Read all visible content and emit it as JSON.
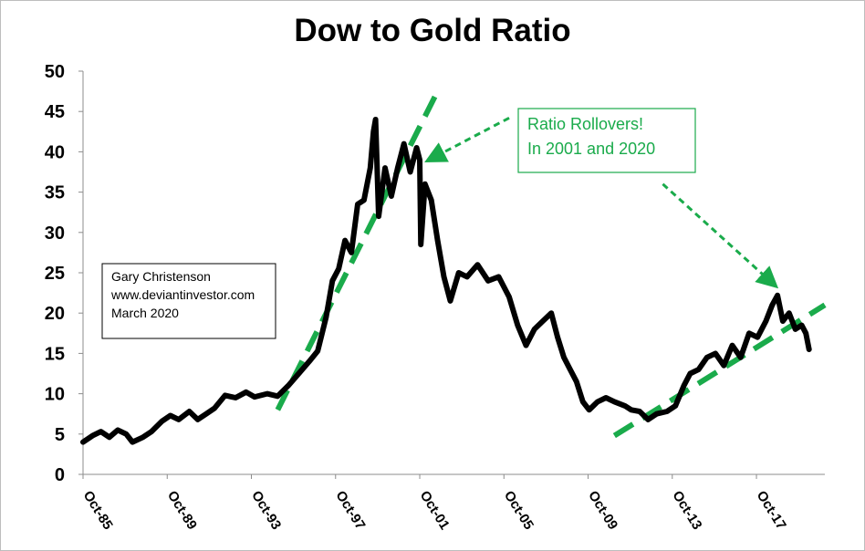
{
  "chart_data": {
    "type": "line",
    "title": "Dow to Gold Ratio",
    "xlabel": "",
    "ylabel": "",
    "ylim": [
      0,
      50
    ],
    "yticks": [
      0,
      5,
      10,
      15,
      20,
      25,
      30,
      35,
      40,
      45,
      50
    ],
    "xtick_labels": [
      "Oct-85",
      "Oct-89",
      "Oct-93",
      "Oct-97",
      "Oct-01",
      "Oct-05",
      "Oct-09",
      "Oct-13",
      "Oct-17"
    ],
    "xtick_years": [
      1985.75,
      1989.75,
      1993.75,
      1997.75,
      2001.75,
      2005.75,
      2009.75,
      2013.75,
      2017.75
    ],
    "xlim": [
      1985.75,
      2021.0
    ],
    "grid": false,
    "series": [
      {
        "color": "#000000",
        "points": [
          [
            1985.75,
            4.0
          ],
          [
            1986.2,
            4.8
          ],
          [
            1986.6,
            5.3
          ],
          [
            1987.0,
            4.6
          ],
          [
            1987.4,
            5.5
          ],
          [
            1987.8,
            5.0
          ],
          [
            1988.1,
            4.0
          ],
          [
            1988.6,
            4.6
          ],
          [
            1989.0,
            5.3
          ],
          [
            1989.5,
            6.6
          ],
          [
            1989.9,
            7.3
          ],
          [
            1990.3,
            6.8
          ],
          [
            1990.8,
            7.8
          ],
          [
            1991.2,
            6.8
          ],
          [
            1991.6,
            7.5
          ],
          [
            1992.0,
            8.2
          ],
          [
            1992.5,
            9.8
          ],
          [
            1993.0,
            9.5
          ],
          [
            1993.5,
            10.2
          ],
          [
            1993.9,
            9.6
          ],
          [
            1994.5,
            10.0
          ],
          [
            1995.0,
            9.7
          ],
          [
            1995.5,
            11.0
          ],
          [
            1996.0,
            12.5
          ],
          [
            1996.5,
            14.0
          ],
          [
            1996.9,
            15.3
          ],
          [
            1997.3,
            19.5
          ],
          [
            1997.6,
            24.0
          ],
          [
            1997.9,
            25.5
          ],
          [
            1998.2,
            29.0
          ],
          [
            1998.5,
            27.5
          ],
          [
            1998.8,
            33.5
          ],
          [
            1999.1,
            34.0
          ],
          [
            1999.4,
            38.0
          ],
          [
            1999.55,
            42.5
          ],
          [
            1999.65,
            44.0
          ],
          [
            1999.8,
            32.0
          ],
          [
            2000.1,
            38.0
          ],
          [
            2000.4,
            34.5
          ],
          [
            2000.7,
            38.0
          ],
          [
            2001.0,
            41.0
          ],
          [
            2001.3,
            37.5
          ],
          [
            2001.6,
            40.5
          ],
          [
            2001.75,
            39.0
          ],
          [
            2001.8,
            28.5
          ],
          [
            2002.0,
            36.0
          ],
          [
            2002.3,
            34.0
          ],
          [
            2002.6,
            29.0
          ],
          [
            2002.9,
            24.5
          ],
          [
            2003.2,
            21.5
          ],
          [
            2003.6,
            25.0
          ],
          [
            2004.0,
            24.5
          ],
          [
            2004.5,
            26.0
          ],
          [
            2005.0,
            24.0
          ],
          [
            2005.5,
            24.5
          ],
          [
            2006.0,
            22.0
          ],
          [
            2006.4,
            18.5
          ],
          [
            2006.8,
            16.0
          ],
          [
            2007.2,
            18.0
          ],
          [
            2007.6,
            19.0
          ],
          [
            2008.0,
            20.0
          ],
          [
            2008.3,
            17.0
          ],
          [
            2008.6,
            14.5
          ],
          [
            2008.9,
            13.0
          ],
          [
            2009.2,
            11.5
          ],
          [
            2009.5,
            9.0
          ],
          [
            2009.8,
            8.0
          ],
          [
            2010.2,
            9.0
          ],
          [
            2010.6,
            9.5
          ],
          [
            2011.0,
            9.0
          ],
          [
            2011.5,
            8.5
          ],
          [
            2011.8,
            8.0
          ],
          [
            2012.2,
            7.8
          ],
          [
            2012.6,
            6.8
          ],
          [
            2013.0,
            7.5
          ],
          [
            2013.5,
            7.8
          ],
          [
            2013.9,
            8.5
          ],
          [
            2014.3,
            11.0
          ],
          [
            2014.6,
            12.5
          ],
          [
            2015.0,
            13.0
          ],
          [
            2015.4,
            14.5
          ],
          [
            2015.8,
            15.0
          ],
          [
            2016.2,
            13.5
          ],
          [
            2016.6,
            16.0
          ],
          [
            2017.0,
            14.5
          ],
          [
            2017.4,
            17.5
          ],
          [
            2017.8,
            17.0
          ],
          [
            2018.2,
            19.0
          ],
          [
            2018.5,
            21.0
          ],
          [
            2018.75,
            22.2
          ],
          [
            2019.0,
            19.0
          ],
          [
            2019.3,
            20.0
          ],
          [
            2019.6,
            18.0
          ],
          [
            2019.9,
            18.5
          ],
          [
            2020.1,
            17.5
          ],
          [
            2020.25,
            15.5
          ]
        ]
      }
    ],
    "trend_lines": [
      {
        "color": "#1aab4b",
        "points": [
          [
            1995.0,
            8.0
          ],
          [
            2002.5,
            47.0
          ]
        ]
      },
      {
        "color": "#1aab4b",
        "points": [
          [
            2011.0,
            4.8
          ],
          [
            2021.0,
            21.0
          ]
        ]
      }
    ],
    "callout": {
      "lines": [
        "Ratio Rollovers!",
        "In 2001 and 2020"
      ],
      "color": "#1aab4b"
    },
    "arrows": [
      {
        "color": "#1aab4b",
        "from": [
          2006.0,
          44.2
        ],
        "to": [
          2002.2,
          39.0
        ]
      },
      {
        "color": "#1aab4b",
        "from": [
          2013.3,
          36.0
        ],
        "to": [
          2018.6,
          23.5
        ]
      }
    ],
    "note": {
      "lines": [
        "Gary Christenson",
        "www.deviantinvestor.com",
        "March 2020"
      ]
    }
  }
}
